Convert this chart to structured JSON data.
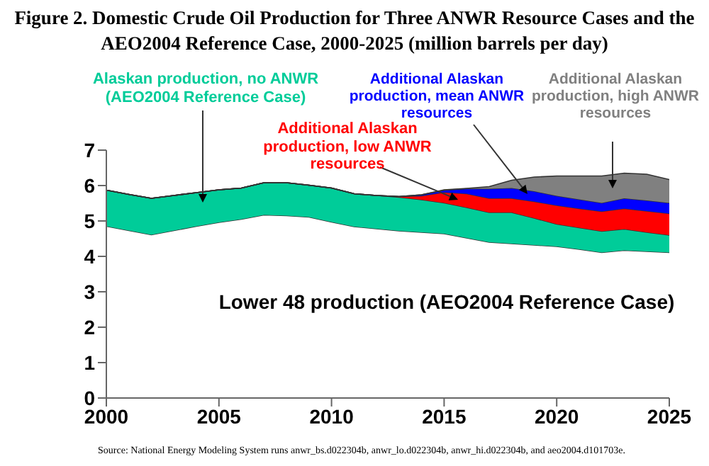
{
  "chart_data": {
    "type": "area",
    "stacked": true,
    "title": "Figure 2. Domestic Crude Oil Production for Three ANWR Resource Cases and the AEO2004 Reference Case, 2000-2025 (million barrels per day)",
    "x": [
      2000,
      2001,
      2002,
      2003,
      2004,
      2005,
      2006,
      2007,
      2008,
      2009,
      2010,
      2011,
      2012,
      2013,
      2014,
      2015,
      2016,
      2017,
      2018,
      2019,
      2020,
      2021,
      2022,
      2023,
      2024,
      2025
    ],
    "series": [
      {
        "name": "Lower 48 production (AEO2004 Reference Case)",
        "color": "#ffffff",
        "values": [
          4.85,
          4.73,
          4.61,
          4.73,
          4.85,
          4.96,
          5.05,
          5.17,
          5.15,
          5.11,
          4.97,
          4.84,
          4.78,
          4.72,
          4.68,
          4.64,
          4.52,
          4.4,
          4.36,
          4.32,
          4.28,
          4.2,
          4.11,
          4.17,
          4.14,
          4.11
        ]
      },
      {
        "name": "Alaskan production, no ANWR (AEO2004 Reference Case)",
        "color": "#00cc99",
        "values": [
          1.02,
          1.02,
          1.03,
          0.99,
          0.95,
          0.92,
          0.88,
          0.91,
          0.93,
          0.9,
          0.96,
          0.93,
          0.94,
          0.95,
          0.92,
          0.87,
          0.86,
          0.84,
          0.88,
          0.76,
          0.63,
          0.61,
          0.6,
          0.6,
          0.54,
          0.49
        ]
      },
      {
        "name": "Additional Alaskan production, low ANWR resources",
        "color": "#ff0000",
        "values": [
          0,
          0,
          0,
          0,
          0,
          0,
          0,
          0,
          0,
          0,
          0,
          0,
          0,
          0.02,
          0.11,
          0.3,
          0.39,
          0.4,
          0.4,
          0.47,
          0.53,
          0.54,
          0.56,
          0.58,
          0.6,
          0.61
        ]
      },
      {
        "name": "Additional Alaskan production, mean ANWR resources",
        "color": "#0000ff",
        "values": [
          0,
          0,
          0,
          0,
          0,
          0,
          0,
          0,
          0,
          0,
          0,
          0,
          0,
          0,
          0.03,
          0.06,
          0.14,
          0.27,
          0.29,
          0.29,
          0.27,
          0.26,
          0.24,
          0.29,
          0.3,
          0.3
        ]
      },
      {
        "name": "Additional Alaskan production, high ANWR resources",
        "color": "#808080",
        "values": [
          0,
          0,
          0,
          0,
          0,
          0,
          0,
          0,
          0,
          0,
          0,
          0,
          0,
          0,
          0,
          0.01,
          0.01,
          0.06,
          0.22,
          0.4,
          0.56,
          0.66,
          0.76,
          0.71,
          0.74,
          0.66
        ]
      }
    ],
    "xlim": [
      2000,
      2025
    ],
    "xticks": [
      2000,
      2005,
      2010,
      2015,
      2020,
      2025
    ],
    "ylim": [
      0,
      7
    ],
    "yticks": [
      0,
      1,
      2,
      3,
      4,
      5,
      6,
      7
    ],
    "grid": false,
    "legend": false,
    "annotations": [
      "Source: National Energy Modeling System runs anwr_bs.d022304b, anwr_lo.d022304b, anwr_hi.d022304b, and aeo2004.d101703e."
    ]
  }
}
